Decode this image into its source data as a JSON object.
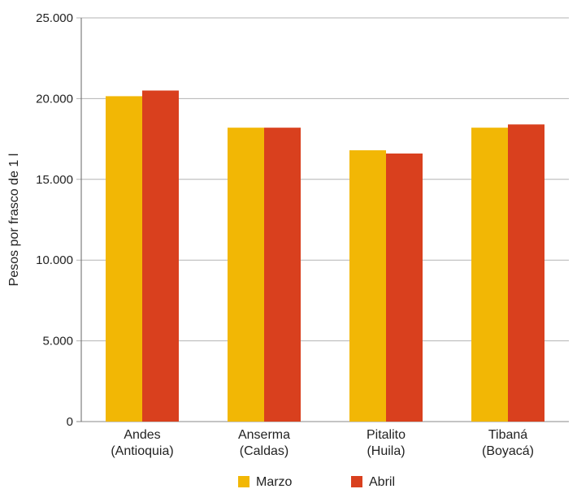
{
  "chart_data": {
    "type": "bar",
    "title": "",
    "xlabel": "",
    "ylabel": "Pesos por frasco de 1 l",
    "ylim": [
      0,
      25000
    ],
    "yticks": [
      {
        "value": 0,
        "label": "0"
      },
      {
        "value": 5000,
        "label": "5.000"
      },
      {
        "value": 10000,
        "label": "10.000"
      },
      {
        "value": 15000,
        "label": "15.000"
      },
      {
        "value": 20000,
        "label": "20.000"
      },
      {
        "value": 25000,
        "label": "25.000"
      }
    ],
    "categories": [
      [
        "Andes",
        "(Antioquia)"
      ],
      [
        "Anserma",
        "(Caldas)"
      ],
      [
        "Pitalito",
        "(Huila)"
      ],
      [
        "Tibaná",
        "(Boyacá)"
      ]
    ],
    "series": [
      {
        "name": "Marzo",
        "color": "#F2B705",
        "values": [
          20150,
          18200,
          16800,
          18200
        ]
      },
      {
        "name": "Abril",
        "color": "#D9401E",
        "values": [
          20500,
          18200,
          16600,
          18400
        ]
      }
    ],
    "grid": true,
    "legend_position": "bottom"
  }
}
